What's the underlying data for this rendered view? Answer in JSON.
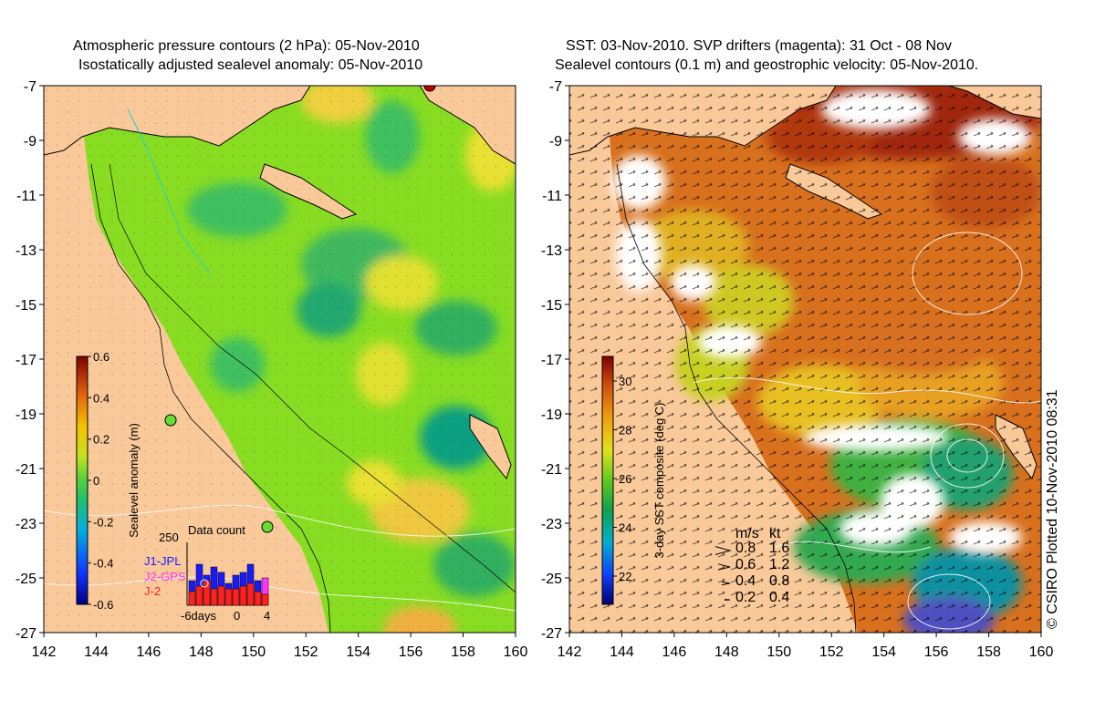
{
  "left_panel": {
    "title_line1": "Atmospheric pressure contours (2 hPa): 05-Nov-2010",
    "title_line2": "Isostatically adjusted sealevel anomaly: 05-Nov-2010",
    "x_ticks": [
      "142",
      "144",
      "146",
      "148",
      "150",
      "152",
      "154",
      "156",
      "158",
      "160"
    ],
    "y_ticks": [
      "-7",
      "-9",
      "-11",
      "-13",
      "-15",
      "-17",
      "-19",
      "-21",
      "-23",
      "-25",
      "-27"
    ],
    "colorbar": {
      "label": "Sealevel anomaly (m)",
      "ticks": [
        "0.6",
        "0.4",
        "0.2",
        "0",
        "-0.2",
        "-0.4",
        "-0.6"
      ]
    },
    "data_count": {
      "title": "Data count",
      "max_label": "250",
      "legend": [
        {
          "name": "J1-JPL",
          "color": "#1a1aff"
        },
        {
          "name": "J2-GPS",
          "color": "#ff33ff"
        },
        {
          "name": "J-2",
          "color": "#ff2020"
        }
      ],
      "axis_labels": [
        "-6days",
        "0",
        "4"
      ],
      "blue_bars": [
        0.45,
        0.75,
        0.55,
        0.7,
        0.6,
        0.4,
        0.55,
        0.6,
        0.75,
        0.45
      ],
      "red_bars": [
        0.25,
        0.35,
        0.45,
        0.3,
        0.35,
        0.3,
        0.3,
        0.35,
        0.4,
        0.25
      ],
      "magenta_bar": 0.5
    }
  },
  "right_panel": {
    "title_line1": "SST: 03-Nov-2010. SVP drifters (magenta): 31 Oct - 08 Nov",
    "title_line2": "Sealevel contours (0.1 m) and geostrophic velocity: 05-Nov-2010.",
    "x_ticks": [
      "142",
      "144",
      "146",
      "148",
      "150",
      "152",
      "154",
      "156",
      "158",
      "160"
    ],
    "y_ticks": [
      "-7",
      "-9",
      "-11",
      "-13",
      "-15",
      "-17",
      "-19",
      "-21",
      "-23",
      "-25",
      "-27"
    ],
    "colorbar": {
      "label": "3-day SST composite (deg C)",
      "ticks": [
        "30",
        "28",
        "26",
        "24",
        "22"
      ]
    },
    "velocity_key": {
      "header_ms": "m/s",
      "header_kt": "kt",
      "rows": [
        {
          "ms": "0.8",
          "kt": "1.6"
        },
        {
          "ms": "0.6",
          "kt": "1.2"
        },
        {
          "ms": "0.4",
          "kt": "0.8"
        },
        {
          "ms": "0.2",
          "kt": "0.4"
        }
      ]
    }
  },
  "credit": "© CSIRO Plotted 10-Nov-2010 08:31",
  "colors": {
    "land": "#f9c99a",
    "sea_green": "#88dd22",
    "sst_orange": "#d8701e"
  }
}
